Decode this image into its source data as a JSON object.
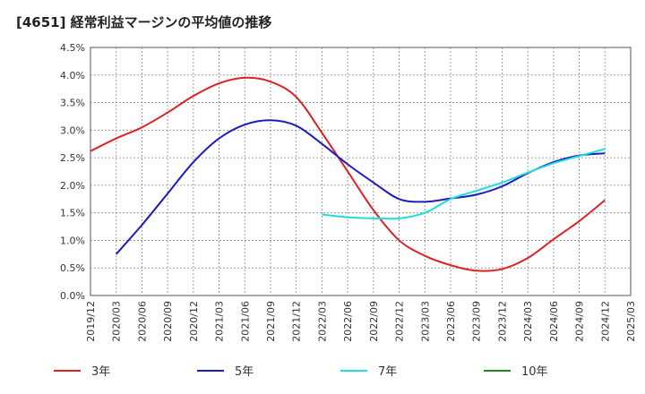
{
  "chart_data": {
    "type": "line",
    "title": "[4651]  経常利益マージンの平均値の推移",
    "xlabel": "",
    "ylabel": "",
    "ylim": [
      0,
      4.5
    ],
    "y_ticks": [
      "0.0%",
      "0.5%",
      "1.0%",
      "1.5%",
      "2.0%",
      "2.5%",
      "3.0%",
      "3.5%",
      "4.0%",
      "4.5%"
    ],
    "x_ticks": [
      "2019/12",
      "2020/03",
      "2020/06",
      "2020/09",
      "2020/12",
      "2021/03",
      "2021/06",
      "2021/09",
      "2021/12",
      "2022/03",
      "2022/06",
      "2022/09",
      "2022/12",
      "2023/03",
      "2023/06",
      "2023/09",
      "2023/12",
      "2024/03",
      "2024/06",
      "2024/09",
      "2024/12",
      "2025/03"
    ],
    "grid": true,
    "legend_position": "bottom",
    "series": [
      {
        "name": "3年",
        "color": "#dd2222",
        "points": [
          [
            "2019/12",
            2.62
          ],
          [
            "2020/03",
            2.85
          ],
          [
            "2020/06",
            3.05
          ],
          [
            "2020/09",
            3.32
          ],
          [
            "2020/12",
            3.62
          ],
          [
            "2021/03",
            3.85
          ],
          [
            "2021/06",
            3.95
          ],
          [
            "2021/09",
            3.88
          ],
          [
            "2021/12",
            3.6
          ],
          [
            "2022/03",
            2.95
          ],
          [
            "2022/06",
            2.25
          ],
          [
            "2022/09",
            1.55
          ],
          [
            "2022/12",
            1.0
          ],
          [
            "2023/03",
            0.72
          ],
          [
            "2023/06",
            0.55
          ],
          [
            "2023/09",
            0.45
          ],
          [
            "2023/12",
            0.48
          ],
          [
            "2024/03",
            0.68
          ],
          [
            "2024/06",
            1.02
          ],
          [
            "2024/09",
            1.35
          ],
          [
            "2024/12",
            1.73
          ]
        ]
      },
      {
        "name": "5年",
        "color": "#1c1cbb",
        "points": [
          [
            "2020/03",
            0.75
          ],
          [
            "2020/06",
            1.28
          ],
          [
            "2020/09",
            1.85
          ],
          [
            "2020/12",
            2.42
          ],
          [
            "2021/03",
            2.85
          ],
          [
            "2021/06",
            3.1
          ],
          [
            "2021/09",
            3.18
          ],
          [
            "2021/12",
            3.08
          ],
          [
            "2022/03",
            2.75
          ],
          [
            "2022/06",
            2.38
          ],
          [
            "2022/09",
            2.05
          ],
          [
            "2022/12",
            1.75
          ],
          [
            "2023/03",
            1.7
          ],
          [
            "2023/06",
            1.76
          ],
          [
            "2023/09",
            1.83
          ],
          [
            "2023/12",
            1.98
          ],
          [
            "2024/03",
            2.22
          ],
          [
            "2024/06",
            2.42
          ],
          [
            "2024/09",
            2.54
          ],
          [
            "2024/12",
            2.58
          ]
        ]
      },
      {
        "name": "7年",
        "color": "#22dddd",
        "points": [
          [
            "2022/03",
            1.47
          ],
          [
            "2022/06",
            1.42
          ],
          [
            "2022/09",
            1.4
          ],
          [
            "2022/12",
            1.4
          ],
          [
            "2023/03",
            1.5
          ],
          [
            "2023/06",
            1.75
          ],
          [
            "2023/09",
            1.9
          ],
          [
            "2023/12",
            2.05
          ],
          [
            "2024/03",
            2.23
          ],
          [
            "2024/06",
            2.4
          ],
          [
            "2024/09",
            2.53
          ],
          [
            "2024/12",
            2.66
          ]
        ]
      },
      {
        "name": "10年",
        "color": "#228822",
        "points": []
      }
    ]
  }
}
